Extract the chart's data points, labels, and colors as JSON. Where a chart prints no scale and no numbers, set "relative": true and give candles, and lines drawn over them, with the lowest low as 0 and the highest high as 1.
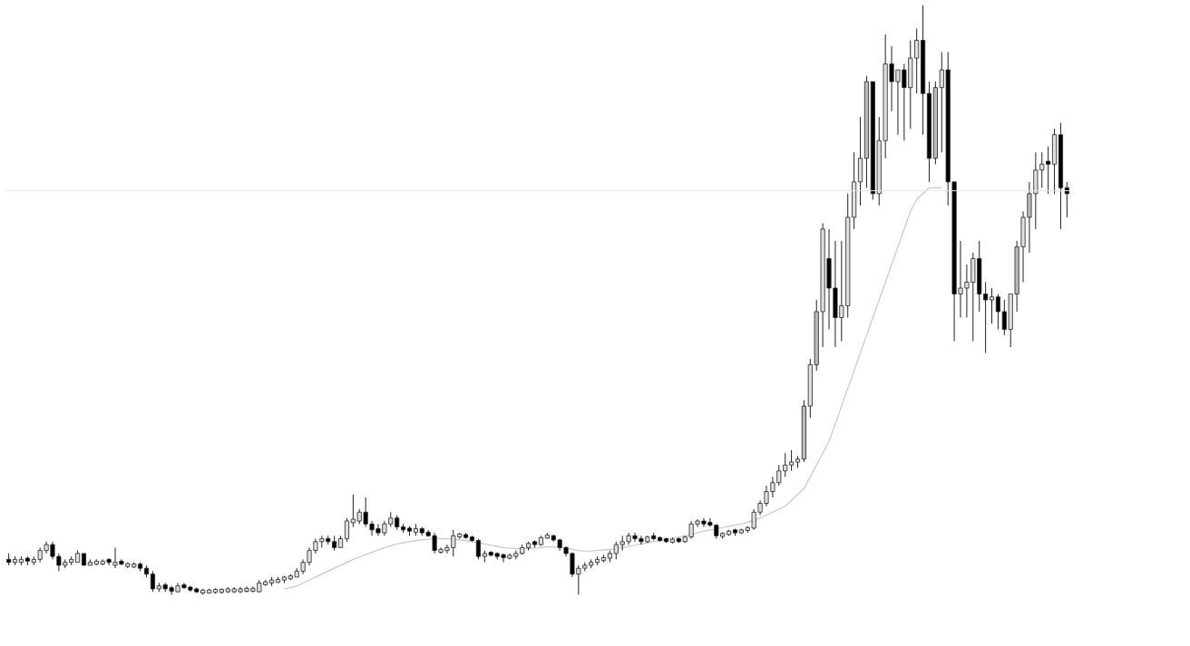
{
  "chart_data": {
    "type": "candlestick",
    "relative": true,
    "categories": [
      null,
      null,
      null,
      null,
      null,
      null,
      null,
      null,
      null,
      null,
      null,
      null,
      null,
      null,
      null,
      null,
      null,
      null,
      null,
      null,
      null,
      null,
      null,
      null,
      null,
      null,
      null,
      null,
      null,
      null,
      null,
      null,
      null,
      null,
      null,
      null,
      null,
      null,
      null,
      null,
      null,
      null,
      null,
      null,
      null,
      null,
      null,
      null,
      null,
      null,
      null,
      null,
      null,
      null,
      null,
      null,
      null,
      null,
      null,
      null,
      null,
      null,
      null,
      null,
      null,
      null,
      null,
      null,
      null,
      null,
      null,
      null,
      null,
      null,
      null,
      null,
      null,
      null,
      null,
      null,
      null,
      null,
      null,
      null,
      null,
      null,
      null,
      null,
      null,
      null,
      null,
      null,
      null,
      null,
      null,
      null,
      null,
      null,
      null,
      null,
      null,
      null,
      null,
      null,
      null,
      null,
      null,
      null,
      null,
      null,
      null,
      null,
      null,
      null,
      null,
      null,
      null,
      null,
      null,
      null,
      null,
      null,
      null,
      null,
      null,
      null,
      null,
      null,
      null,
      null,
      null,
      null,
      null,
      null,
      null,
      null,
      null,
      null,
      null,
      null,
      null,
      null,
      null,
      null,
      null,
      null,
      null,
      null,
      null,
      null,
      null,
      null,
      null,
      null,
      null,
      null,
      null,
      null,
      null,
      null,
      null,
      null,
      null,
      null,
      null,
      null,
      null,
      null,
      null,
      null
    ],
    "ohlc": [
      [
        0.06,
        0.07,
        0.05,
        0.055
      ],
      [
        0.055,
        0.065,
        0.05,
        0.06
      ],
      [
        0.055,
        0.065,
        0.05,
        0.06
      ],
      [
        0.062,
        0.065,
        0.05,
        0.057
      ],
      [
        0.055,
        0.065,
        0.05,
        0.06
      ],
      [
        0.06,
        0.08,
        0.055,
        0.075
      ],
      [
        0.075,
        0.09,
        0.07,
        0.085
      ],
      [
        0.085,
        0.09,
        0.06,
        0.065
      ],
      [
        0.065,
        0.07,
        0.04,
        0.05
      ],
      [
        0.05,
        0.06,
        0.045,
        0.055
      ],
      [
        0.055,
        0.065,
        0.05,
        0.06
      ],
      [
        0.055,
        0.075,
        0.055,
        0.07
      ],
      [
        0.07,
        0.07,
        0.05,
        0.05
      ],
      [
        0.05,
        0.06,
        0.05,
        0.055
      ],
      [
        0.052,
        0.06,
        0.05,
        0.057
      ],
      [
        0.052,
        0.06,
        0.05,
        0.057
      ],
      [
        0.06,
        0.062,
        0.05,
        0.055
      ],
      [
        0.05,
        0.08,
        0.045,
        0.055
      ],
      [
        0.057,
        0.06,
        0.05,
        0.052
      ],
      [
        0.048,
        0.055,
        0.045,
        0.053
      ],
      [
        0.047,
        0.055,
        0.045,
        0.052
      ],
      [
        0.052,
        0.055,
        0.04,
        0.045
      ],
      [
        0.045,
        0.05,
        0.03,
        0.035
      ],
      [
        0.035,
        0.04,
        0.005,
        0.01
      ],
      [
        0.01,
        0.02,
        0.005,
        0.015
      ],
      [
        0.017,
        0.02,
        0.005,
        0.01
      ],
      [
        0.012,
        0.015,
        0.0,
        0.006
      ],
      [
        0.005,
        0.02,
        0.005,
        0.015
      ],
      [
        0.017,
        0.02,
        0.01,
        0.012
      ],
      [
        0.013,
        0.015,
        0.005,
        0.008
      ],
      [
        0.01,
        0.012,
        0.003,
        0.005
      ],
      [
        0.003,
        0.01,
        0.0,
        0.008
      ],
      [
        0.003,
        0.01,
        0.002,
        0.008
      ],
      [
        0.004,
        0.011,
        0.002,
        0.009
      ],
      [
        0.004,
        0.011,
        0.002,
        0.009
      ],
      [
        0.005,
        0.013,
        0.003,
        0.01
      ],
      [
        0.005,
        0.013,
        0.003,
        0.01
      ],
      [
        0.005,
        0.013,
        0.003,
        0.01
      ],
      [
        0.006,
        0.014,
        0.004,
        0.011
      ],
      [
        0.006,
        0.014,
        0.004,
        0.011
      ],
      [
        0.005,
        0.025,
        0.005,
        0.02
      ],
      [
        0.017,
        0.025,
        0.015,
        0.022
      ],
      [
        0.02,
        0.03,
        0.015,
        0.025
      ],
      [
        0.021,
        0.03,
        0.02,
        0.026
      ],
      [
        0.025,
        0.032,
        0.02,
        0.03
      ],
      [
        0.027,
        0.035,
        0.025,
        0.032
      ],
      [
        0.03,
        0.045,
        0.03,
        0.04
      ],
      [
        0.04,
        0.06,
        0.035,
        0.055
      ],
      [
        0.055,
        0.08,
        0.05,
        0.075
      ],
      [
        0.075,
        0.095,
        0.07,
        0.09
      ],
      [
        0.09,
        0.1,
        0.08,
        0.095
      ],
      [
        0.095,
        0.1,
        0.085,
        0.09
      ],
      [
        0.09,
        0.1,
        0.075,
        0.08
      ],
      [
        0.08,
        0.1,
        0.08,
        0.095
      ],
      [
        0.095,
        0.13,
        0.09,
        0.125
      ],
      [
        0.122,
        0.17,
        0.115,
        0.128
      ],
      [
        0.125,
        0.145,
        0.12,
        0.14
      ],
      [
        0.14,
        0.165,
        0.115,
        0.12
      ],
      [
        0.12,
        0.125,
        0.1,
        0.11
      ],
      [
        0.112,
        0.12,
        0.1,
        0.105
      ],
      [
        0.105,
        0.125,
        0.1,
        0.12
      ],
      [
        0.12,
        0.14,
        0.115,
        0.13
      ],
      [
        0.13,
        0.135,
        0.11,
        0.115
      ],
      [
        0.115,
        0.12,
        0.105,
        0.11
      ],
      [
        0.113,
        0.116,
        0.1,
        0.108
      ],
      [
        0.106,
        0.12,
        0.1,
        0.112
      ],
      [
        0.112,
        0.115,
        0.1,
        0.105
      ],
      [
        0.106,
        0.11,
        0.098,
        0.1
      ],
      [
        0.1,
        0.105,
        0.07,
        0.075
      ],
      [
        0.072,
        0.08,
        0.07,
        0.077
      ],
      [
        0.075,
        0.085,
        0.07,
        0.08
      ],
      [
        0.08,
        0.11,
        0.065,
        0.1
      ],
      [
        0.098,
        0.105,
        0.095,
        0.103
      ],
      [
        0.102,
        0.105,
        0.095,
        0.097
      ],
      [
        0.098,
        0.1,
        0.09,
        0.092
      ],
      [
        0.092,
        0.095,
        0.06,
        0.065
      ],
      [
        0.065,
        0.075,
        0.055,
        0.07
      ],
      [
        0.072,
        0.074,
        0.065,
        0.067
      ],
      [
        0.07,
        0.072,
        0.06,
        0.065
      ],
      [
        0.068,
        0.07,
        0.055,
        0.063
      ],
      [
        0.062,
        0.07,
        0.06,
        0.067
      ],
      [
        0.065,
        0.075,
        0.06,
        0.07
      ],
      [
        0.07,
        0.085,
        0.068,
        0.08
      ],
      [
        0.08,
        0.09,
        0.075,
        0.087
      ],
      [
        0.09,
        0.092,
        0.08,
        0.085
      ],
      [
        0.085,
        0.1,
        0.083,
        0.097
      ],
      [
        0.096,
        0.105,
        0.095,
        0.101
      ],
      [
        0.1,
        0.102,
        0.09,
        0.093
      ],
      [
        0.093,
        0.095,
        0.075,
        0.08
      ],
      [
        0.08,
        0.082,
        0.065,
        0.07
      ],
      [
        0.07,
        0.072,
        0.03,
        0.035
      ],
      [
        0.035,
        0.05,
        0.0,
        0.045
      ],
      [
        0.045,
        0.055,
        0.04,
        0.05
      ],
      [
        0.05,
        0.06,
        0.045,
        0.055
      ],
      [
        0.055,
        0.065,
        0.05,
        0.06
      ],
      [
        0.058,
        0.068,
        0.055,
        0.063
      ],
      [
        0.062,
        0.075,
        0.055,
        0.07
      ],
      [
        0.07,
        0.09,
        0.06,
        0.085
      ],
      [
        0.085,
        0.1,
        0.075,
        0.09
      ],
      [
        0.09,
        0.105,
        0.085,
        0.1
      ],
      [
        0.1,
        0.105,
        0.09,
        0.095
      ],
      [
        0.095,
        0.1,
        0.085,
        0.09
      ],
      [
        0.09,
        0.1,
        0.088,
        0.098
      ],
      [
        0.1,
        0.105,
        0.092,
        0.095
      ],
      [
        0.097,
        0.099,
        0.09,
        0.092
      ],
      [
        0.095,
        0.097,
        0.088,
        0.09
      ],
      [
        0.089,
        0.097,
        0.087,
        0.094
      ],
      [
        0.095,
        0.097,
        0.088,
        0.09
      ],
      [
        0.09,
        0.1,
        0.088,
        0.098
      ],
      [
        0.098,
        0.125,
        0.095,
        0.12
      ],
      [
        0.12,
        0.128,
        0.115,
        0.125
      ],
      [
        0.125,
        0.13,
        0.115,
        0.12
      ],
      [
        0.123,
        0.13,
        0.115,
        0.118
      ],
      [
        0.118,
        0.12,
        0.095,
        0.1
      ],
      [
        0.099,
        0.106,
        0.095,
        0.104
      ],
      [
        0.102,
        0.11,
        0.1,
        0.108
      ],
      [
        0.11,
        0.112,
        0.1,
        0.105
      ],
      [
        0.105,
        0.112,
        0.103,
        0.11
      ],
      [
        0.109,
        0.116,
        0.105,
        0.114
      ],
      [
        0.113,
        0.145,
        0.11,
        0.14
      ],
      [
        0.14,
        0.16,
        0.135,
        0.155
      ],
      [
        0.155,
        0.185,
        0.15,
        0.175
      ],
      [
        0.175,
        0.2,
        0.165,
        0.19
      ],
      [
        0.19,
        0.22,
        0.185,
        0.21
      ],
      [
        0.21,
        0.24,
        0.2,
        0.22
      ],
      [
        0.22,
        0.245,
        0.21,
        0.225
      ],
      [
        0.225,
        0.235,
        0.215,
        0.23
      ],
      [
        0.23,
        0.33,
        0.225,
        0.32
      ],
      [
        0.32,
        0.4,
        0.3,
        0.39
      ],
      [
        0.39,
        0.5,
        0.38,
        0.48
      ],
      [
        0.48,
        0.63,
        0.42,
        0.62
      ],
      [
        0.57,
        0.62,
        0.45,
        0.52
      ],
      [
        0.52,
        0.6,
        0.42,
        0.47
      ],
      [
        0.47,
        0.6,
        0.43,
        0.49
      ],
      [
        0.49,
        0.68,
        0.47,
        0.64
      ],
      [
        0.64,
        0.75,
        0.62,
        0.7
      ],
      [
        0.7,
        0.81,
        0.66,
        0.74
      ],
      [
        0.74,
        0.88,
        0.69,
        0.87
      ],
      [
        0.87,
        0.87,
        0.67,
        0.68
      ],
      [
        0.68,
        0.81,
        0.66,
        0.77
      ],
      [
        0.77,
        0.95,
        0.74,
        0.9
      ],
      [
        0.9,
        0.93,
        0.82,
        0.87
      ],
      [
        0.87,
        0.89,
        0.78,
        0.89
      ],
      [
        0.89,
        0.9,
        0.77,
        0.86
      ],
      [
        0.86,
        0.94,
        0.79,
        0.91
      ],
      [
        0.91,
        0.96,
        0.85,
        0.94
      ],
      [
        0.94,
        1.0,
        0.78,
        0.85
      ],
      [
        0.85,
        0.87,
        0.7,
        0.74
      ],
      [
        0.74,
        0.87,
        0.73,
        0.86
      ],
      [
        0.86,
        0.92,
        0.75,
        0.89
      ],
      [
        0.89,
        0.92,
        0.66,
        0.7
      ],
      [
        0.7,
        0.7,
        0.43,
        0.51
      ],
      [
        0.51,
        0.6,
        0.47,
        0.52
      ],
      [
        0.52,
        0.56,
        0.47,
        0.53
      ],
      [
        0.53,
        0.58,
        0.43,
        0.57
      ],
      [
        0.57,
        0.6,
        0.48,
        0.51
      ],
      [
        0.51,
        0.53,
        0.41,
        0.5
      ],
      [
        0.5,
        0.52,
        0.46,
        0.505
      ],
      [
        0.505,
        0.51,
        0.45,
        0.48
      ],
      [
        0.48,
        0.5,
        0.44,
        0.45
      ],
      [
        0.45,
        0.51,
        0.42,
        0.51
      ],
      [
        0.51,
        0.6,
        0.48,
        0.59
      ],
      [
        0.59,
        0.65,
        0.53,
        0.64
      ],
      [
        0.64,
        0.7,
        0.58,
        0.68
      ],
      [
        0.68,
        0.75,
        0.62,
        0.72
      ],
      [
        0.72,
        0.75,
        0.69,
        0.73
      ],
      [
        0.735,
        0.76,
        0.68,
        0.73
      ],
      [
        0.73,
        0.79,
        0.68,
        0.78
      ],
      [
        0.78,
        0.8,
        0.62,
        0.69
      ],
      [
        0.69,
        0.7,
        0.64,
        0.68
      ]
    ],
    "colors": [
      "#000000",
      "#e0e0e0",
      "#e0e0e0",
      "#000000",
      "#e0e0e0",
      "#e0e0e0",
      "#e0e0e0",
      "#000000",
      "#000000",
      "#e0e0e0",
      "#e0e0e0",
      "#e0e0e0",
      "#000000",
      "#e0e0e0",
      "#e0e0e0",
      "#e0e0e0",
      "#000000",
      "#e0e0e0",
      "#000000",
      "#e0e0e0",
      "#e0e0e0",
      "#000000",
      "#000000",
      "#000000",
      "#e0e0e0",
      "#000000",
      "#000000",
      "#e0e0e0",
      "#000000",
      "#000000",
      "#000000",
      "#e0e0e0",
      "#e0e0e0",
      "#e0e0e0",
      "#e0e0e0",
      "#e0e0e0",
      "#e0e0e0",
      "#e0e0e0",
      "#e0e0e0",
      "#e0e0e0",
      "#e0e0e0",
      "#e0e0e0",
      "#e0e0e0",
      "#e0e0e0",
      "#e0e0e0",
      "#e0e0e0",
      "#e0e0e0",
      "#e0e0e0",
      "#e0e0e0",
      "#e0e0e0",
      "#e0e0e0",
      "#000000",
      "#000000",
      "#e0e0e0",
      "#e0e0e0",
      "#e0e0e0",
      "#e0e0e0",
      "#000000",
      "#000000",
      "#000000",
      "#e0e0e0",
      "#e0e0e0",
      "#000000",
      "#000000",
      "#000000",
      "#e0e0e0",
      "#000000",
      "#000000",
      "#000000",
      "#e0e0e0",
      "#e0e0e0",
      "#e0e0e0",
      "#e0e0e0",
      "#000000",
      "#000000",
      "#000000",
      "#e0e0e0",
      "#000000",
      "#000000",
      "#000000",
      "#e0e0e0",
      "#e0e0e0",
      "#e0e0e0",
      "#e0e0e0",
      "#000000",
      "#e0e0e0",
      "#e0e0e0",
      "#000000",
      "#000000",
      "#000000",
      "#000000",
      "#e0e0e0",
      "#e0e0e0",
      "#e0e0e0",
      "#e0e0e0",
      "#e0e0e0",
      "#e0e0e0",
      "#e0e0e0",
      "#e0e0e0",
      "#e0e0e0",
      "#000000",
      "#000000",
      "#e0e0e0",
      "#000000",
      "#000000",
      "#000000",
      "#e0e0e0",
      "#000000",
      "#e0e0e0",
      "#e0e0e0",
      "#e0e0e0",
      "#000000",
      "#000000",
      "#000000",
      "#e0e0e0",
      "#e0e0e0",
      "#000000",
      "#e0e0e0",
      "#e0e0e0",
      "#e0e0e0",
      "#e0e0e0",
      "#e0e0e0",
      "#e0e0e0",
      "#e0e0e0",
      "#e0e0e0",
      "#e0e0e0",
      "#e0e0e0",
      "#bbbbbb",
      "#e0e0e0",
      "#bbbbbb",
      "#e0e0e0",
      "#000000",
      "#000000",
      "#e0e0e0",
      "#e0e0e0",
      "#e0e0e0",
      "#e0e0e0",
      "#bbbbbb",
      "#000000",
      "#e0e0e0",
      "#e0e0e0",
      "#000000",
      "#e0e0e0",
      "#000000",
      "#e0e0e0",
      "#e0e0e0",
      "#000000",
      "#000000",
      "#bbbbbb",
      "#e0e0e0",
      "#000000",
      "#000000",
      "#e0e0e0",
      "#e0e0e0",
      "#e0e0e0",
      "#000000",
      "#000000",
      "#e0e0e0",
      "#000000",
      "#000000",
      "#e0e0e0",
      "#bbbbbb",
      "#e0e0e0",
      "#bbbbbb",
      "#e0e0e0",
      "#e0e0e0",
      "#000000",
      "#e0e0e0",
      "#000000",
      "#000000"
    ],
    "series": [
      {
        "type": "line",
        "color": "#c8c8c8",
        "values": [
          null,
          null,
          null,
          null,
          null,
          null,
          null,
          null,
          null,
          null,
          null,
          null,
          null,
          null,
          null,
          null,
          null,
          null,
          null,
          null,
          null,
          null,
          null,
          null,
          null,
          null,
          null,
          null,
          null,
          null,
          null,
          null,
          null,
          null,
          null,
          null,
          null,
          null,
          null,
          null,
          null,
          null,
          null,
          null,
          0.01,
          0.012,
          0.015,
          0.02,
          0.025,
          0.03,
          0.035,
          0.04,
          0.045,
          0.05,
          0.055,
          0.06,
          0.064,
          0.068,
          0.072,
          0.076,
          0.08,
          0.083,
          0.086,
          0.088,
          0.09,
          0.092,
          0.093,
          0.094,
          0.095,
          0.095,
          0.095,
          0.094,
          0.093,
          0.092,
          0.09,
          0.088,
          0.086,
          0.084,
          0.082,
          0.08,
          0.079,
          0.078,
          0.078,
          0.078,
          0.079,
          0.08,
          0.081,
          0.081,
          0.08,
          0.079,
          0.077,
          0.075,
          0.074,
          0.074,
          0.075,
          0.076,
          0.077,
          0.078,
          0.08,
          0.082,
          0.084,
          0.086,
          0.088,
          0.09,
          0.092,
          0.094,
          0.096,
          0.098,
          0.1,
          0.102,
          0.105,
          0.108,
          0.11,
          0.112,
          0.114,
          0.116,
          0.118,
          0.12,
          0.123,
          0.126,
          0.13,
          0.135,
          0.14,
          0.145,
          0.15,
          0.16,
          0.17,
          0.18,
          0.2,
          0.22,
          0.24,
          0.26,
          0.29,
          0.32,
          0.35,
          0.38,
          0.41,
          0.44,
          0.47,
          0.5,
          0.53,
          0.56,
          0.59,
          0.62,
          0.65,
          0.67,
          0.68,
          0.69,
          0.69,
          0.69,
          null,
          null,
          null,
          null,
          null,
          null,
          null,
          null,
          null,
          null,
          null,
          null,
          null,
          null,
          null,
          null,
          null,
          null,
          null,
          null
        ]
      }
    ],
    "ref_lines": [
      {
        "axis": "y",
        "value": 0.685,
        "color": "#e6e6e6"
      }
    ]
  }
}
